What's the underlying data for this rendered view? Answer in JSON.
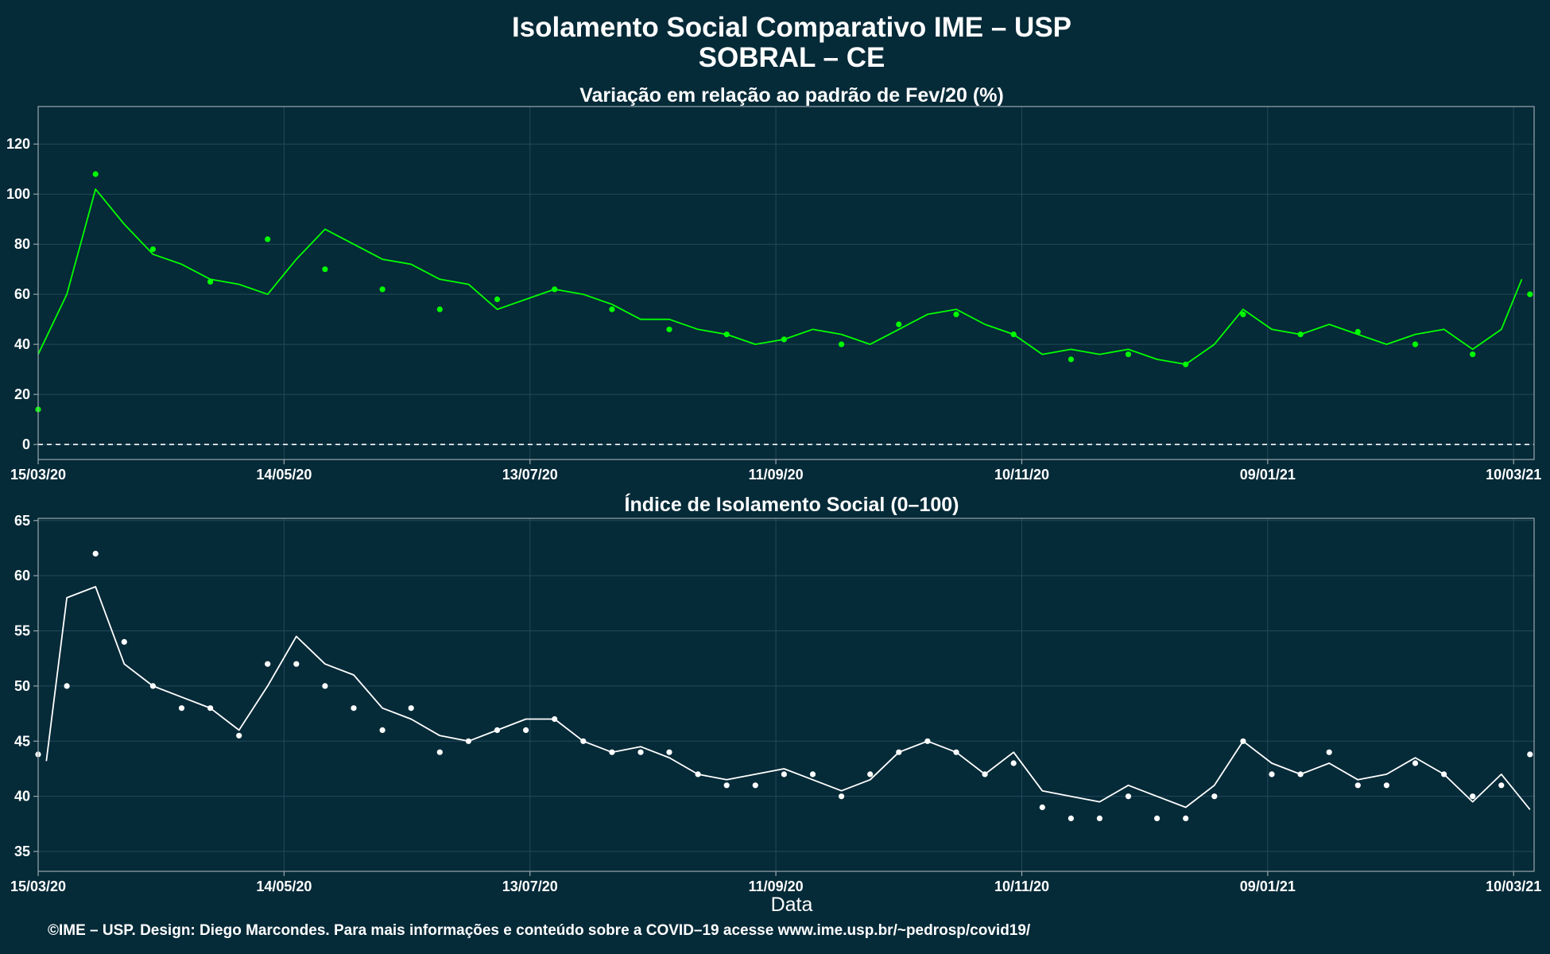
{
  "header": {
    "title": "Isolamento Social Comparativo IME – USP",
    "subtitle": "SOBRAL – CE"
  },
  "caption": "©IME – USP. Design: Diego Marcondes. Para mais informações e conteúdo sobre a COVID–19 acesse www.ime.usp.br/~pedrosp/covid19/",
  "colors": {
    "background": "#052a38",
    "variation_series": "#00ff00",
    "index_series": "#ffffff",
    "grid": "#24495a",
    "axis": "#9aa7ad"
  },
  "chart_data": [
    {
      "type": "scatter",
      "title": "Variação em relação ao padrão de Fev/20 (%)",
      "xlabel": "",
      "ylabel": "",
      "x_range": [
        "15/03/20",
        "15/03/21"
      ],
      "x_tick_labels": [
        "15/03/20",
        "14/05/20",
        "13/07/20",
        "11/09/20",
        "10/11/20",
        "09/01/21",
        "10/03/21"
      ],
      "ylim": [
        -6,
        135
      ],
      "y_ticks": [
        0,
        20,
        40,
        60,
        80,
        100,
        120
      ],
      "reference_line": {
        "y": 0,
        "style": "dashed"
      },
      "grid": true,
      "series": [
        {
          "kind": "points",
          "color": "#00ff00",
          "x": [
            "15/03/20",
            "29/03/20",
            "12/04/20",
            "26/04/20",
            "10/05/20",
            "24/05/20",
            "07/06/20",
            "21/06/20",
            "05/07/20",
            "19/07/20",
            "02/08/20",
            "16/08/20",
            "30/08/20",
            "13/09/20",
            "27/09/20",
            "11/10/20",
            "25/10/20",
            "08/11/20",
            "22/11/20",
            "06/12/20",
            "20/12/20",
            "03/01/21",
            "17/01/21",
            "31/01/21",
            "14/02/21",
            "28/02/21",
            "14/03/21"
          ],
          "y": [
            14,
            108,
            78,
            65,
            82,
            70,
            62,
            54,
            58,
            62,
            54,
            46,
            44,
            42,
            40,
            48,
            52,
            44,
            34,
            36,
            32,
            52,
            44,
            45,
            40,
            36,
            60
          ]
        },
        {
          "kind": "moving_average",
          "color": "#00ff00",
          "x": [
            "15/03/20",
            "22/03/20",
            "29/03/20",
            "05/04/20",
            "12/04/20",
            "19/04/20",
            "26/04/20",
            "03/05/20",
            "10/05/20",
            "17/05/20",
            "24/05/20",
            "31/05/20",
            "07/06/20",
            "14/06/20",
            "21/06/20",
            "28/06/20",
            "05/07/20",
            "12/07/20",
            "19/07/20",
            "26/07/20",
            "02/08/20",
            "09/08/20",
            "16/08/20",
            "23/08/20",
            "30/08/20",
            "06/09/20",
            "13/09/20",
            "20/09/20",
            "27/09/20",
            "04/10/20",
            "11/10/20",
            "18/10/20",
            "25/10/20",
            "01/11/20",
            "08/11/20",
            "15/11/20",
            "22/11/20",
            "29/11/20",
            "06/12/20",
            "13/12/20",
            "20/12/20",
            "27/12/20",
            "03/01/21",
            "10/01/21",
            "17/01/21",
            "24/01/21",
            "31/01/21",
            "07/02/21",
            "14/02/21",
            "21/02/21",
            "28/02/21",
            "07/03/21",
            "12/03/21"
          ],
          "y": [
            36,
            60,
            102,
            88,
            76,
            72,
            66,
            64,
            60,
            74,
            86,
            80,
            74,
            72,
            66,
            64,
            54,
            58,
            62,
            60,
            56,
            50,
            50,
            46,
            44,
            40,
            42,
            46,
            44,
            40,
            46,
            52,
            54,
            48,
            44,
            36,
            38,
            36,
            38,
            34,
            32,
            40,
            54,
            46,
            44,
            48,
            44,
            40,
            44,
            46,
            38,
            46,
            66
          ]
        }
      ]
    },
    {
      "type": "scatter",
      "title": "Índice de Isolamento Social (0–100)",
      "xlabel": "Data",
      "ylabel": "",
      "x_range": [
        "15/03/20",
        "15/03/21"
      ],
      "x_tick_labels": [
        "15/03/20",
        "14/05/20",
        "13/07/20",
        "11/09/20",
        "10/11/20",
        "09/01/21",
        "10/03/21"
      ],
      "ylim": [
        33.2,
        65.2
      ],
      "y_ticks": [
        35,
        40,
        45,
        50,
        55,
        60,
        65
      ],
      "grid": true,
      "series": [
        {
          "kind": "points",
          "color": "#ffffff",
          "x": [
            "15/03/20",
            "22/03/20",
            "29/03/20",
            "05/04/20",
            "12/04/20",
            "19/04/20",
            "26/04/20",
            "03/05/20",
            "10/05/20",
            "17/05/20",
            "24/05/20",
            "31/05/20",
            "07/06/20",
            "14/06/20",
            "21/06/20",
            "28/06/20",
            "05/07/20",
            "12/07/20",
            "19/07/20",
            "26/07/20",
            "02/08/20",
            "09/08/20",
            "16/08/20",
            "23/08/20",
            "30/08/20",
            "06/09/20",
            "13/09/20",
            "20/09/20",
            "27/09/20",
            "04/10/20",
            "11/10/20",
            "18/10/20",
            "25/10/20",
            "01/11/20",
            "08/11/20",
            "15/11/20",
            "22/11/20",
            "29/11/20",
            "06/12/20",
            "13/12/20",
            "20/12/20",
            "27/12/20",
            "03/01/21",
            "10/01/21",
            "17/01/21",
            "24/01/21",
            "31/01/21",
            "07/02/21",
            "14/02/21",
            "21/02/21",
            "28/02/21",
            "07/03/21",
            "14/03/21"
          ],
          "y": [
            43.8,
            50,
            62,
            54,
            50,
            48,
            48,
            45.5,
            52,
            52,
            50,
            48,
            46,
            48,
            44,
            45,
            46,
            46,
            47,
            45,
            44,
            44,
            44,
            42,
            41,
            41,
            42,
            42,
            40,
            42,
            44,
            45,
            44,
            42,
            43,
            39,
            38,
            38,
            40,
            38,
            38,
            40,
            45,
            42,
            42,
            44,
            41,
            41,
            43,
            42,
            40,
            41,
            43.8
          ]
        },
        {
          "kind": "moving_average",
          "color": "#ffffff",
          "x": [
            "17/03/20",
            "22/03/20",
            "29/03/20",
            "05/04/20",
            "12/04/20",
            "19/04/20",
            "26/04/20",
            "03/05/20",
            "10/05/20",
            "17/05/20",
            "24/05/20",
            "31/05/20",
            "07/06/20",
            "14/06/20",
            "21/06/20",
            "28/06/20",
            "05/07/20",
            "12/07/20",
            "19/07/20",
            "26/07/20",
            "02/08/20",
            "09/08/20",
            "16/08/20",
            "23/08/20",
            "30/08/20",
            "06/09/20",
            "13/09/20",
            "20/09/20",
            "27/09/20",
            "04/10/20",
            "11/10/20",
            "18/10/20",
            "25/10/20",
            "01/11/20",
            "08/11/20",
            "15/11/20",
            "22/11/20",
            "29/11/20",
            "06/12/20",
            "13/12/20",
            "20/12/20",
            "27/12/20",
            "03/01/21",
            "10/01/21",
            "17/01/21",
            "24/01/21",
            "31/01/21",
            "07/02/21",
            "14/02/21",
            "21/02/21",
            "28/02/21",
            "07/03/21",
            "14/03/21"
          ],
          "y": [
            43.2,
            58,
            59,
            52,
            50,
            49,
            48,
            46,
            50,
            54.5,
            52,
            51,
            48,
            47,
            45.5,
            45,
            46,
            47,
            47,
            45,
            44,
            44.5,
            43.5,
            42,
            41.5,
            42,
            42.5,
            41.5,
            40.5,
            41.5,
            44,
            45,
            44,
            42,
            44,
            40.5,
            40,
            39.5,
            41,
            40,
            39,
            41,
            45,
            43,
            42,
            43,
            41.5,
            42,
            43.5,
            42,
            39.5,
            42,
            38.8
          ]
        }
      ]
    }
  ]
}
